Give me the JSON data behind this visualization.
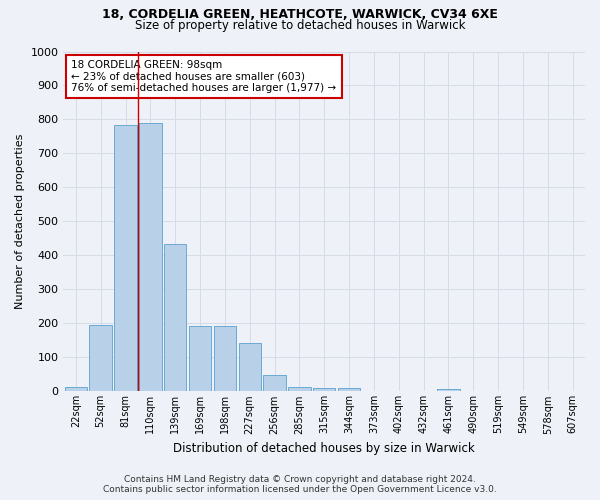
{
  "title_line1": "18, CORDELIA GREEN, HEATHCOTE, WARWICK, CV34 6XE",
  "title_line2": "Size of property relative to detached houses in Warwick",
  "xlabel": "Distribution of detached houses by size in Warwick",
  "ylabel": "Number of detached properties",
  "bar_color": "#b8d0e8",
  "bar_edge_color": "#6aaad4",
  "categories": [
    "22sqm",
    "52sqm",
    "81sqm",
    "110sqm",
    "139sqm",
    "169sqm",
    "198sqm",
    "227sqm",
    "256sqm",
    "285sqm",
    "315sqm",
    "344sqm",
    "373sqm",
    "402sqm",
    "432sqm",
    "461sqm",
    "490sqm",
    "519sqm",
    "549sqm",
    "578sqm",
    "607sqm"
  ],
  "values": [
    13,
    195,
    785,
    790,
    435,
    192,
    193,
    143,
    47,
    13,
    11,
    10,
    0,
    0,
    0,
    8,
    0,
    0,
    0,
    0,
    0
  ],
  "ylim": [
    0,
    1000
  ],
  "yticks": [
    0,
    100,
    200,
    300,
    400,
    500,
    600,
    700,
    800,
    900,
    1000
  ],
  "vline_x": 2.5,
  "annotation_text": "18 CORDELIA GREEN: 98sqm\n← 23% of detached houses are smaller (603)\n76% of semi-detached houses are larger (1,977) →",
  "annotation_box_color": "#ffffff",
  "annotation_border_color": "#cc0000",
  "grid_color": "#d4dce8",
  "vline_color": "#cc0000",
  "background_color": "#eef2f8",
  "footer_line1": "Contains HM Land Registry data © Crown copyright and database right 2024.",
  "footer_line2": "Contains public sector information licensed under the Open Government Licence v3.0."
}
